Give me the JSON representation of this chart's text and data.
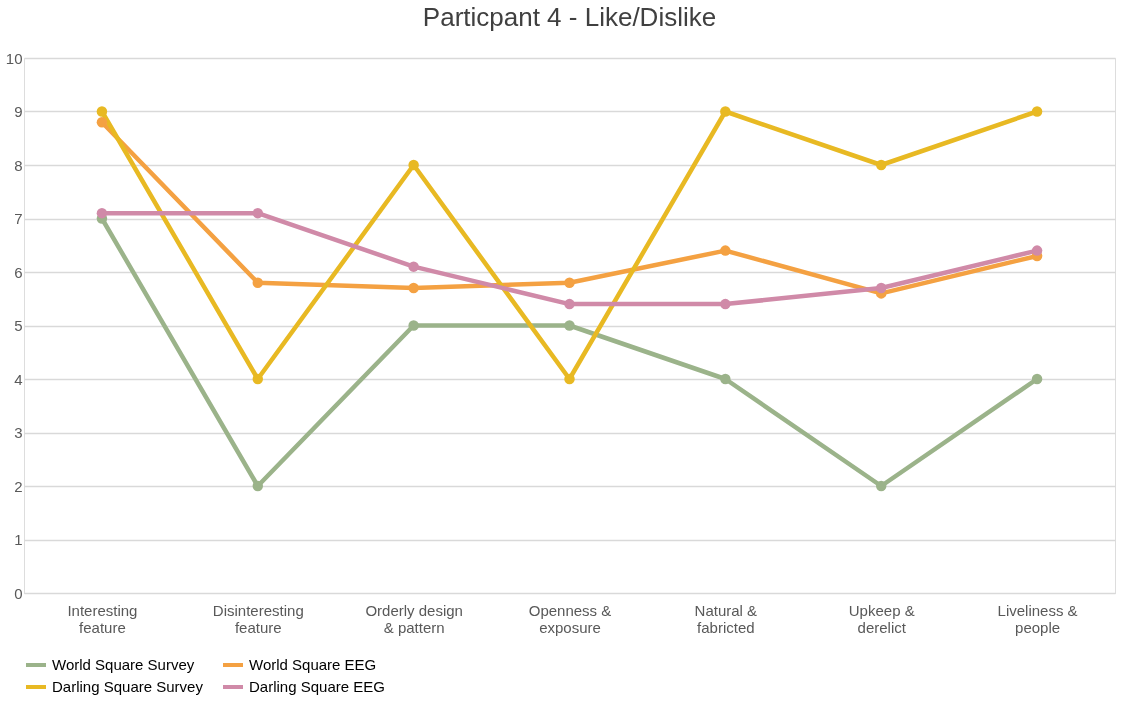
{
  "chart_data": {
    "type": "line",
    "title": "Particpant 4 - Like/Dislike",
    "categories": [
      "Interesting feature",
      "Disinteresting feature",
      "Orderly design & pattern",
      "Openness & exposure",
      "Natural & fabricted",
      "Upkeep & derelict",
      "Liveliness & people"
    ],
    "series": [
      {
        "name": "World Square Survey",
        "color": "#9bb38a",
        "values": [
          7,
          2,
          5,
          5,
          4,
          2,
          4
        ]
      },
      {
        "name": "World Square EEG",
        "color": "#f4a142",
        "values": [
          8.8,
          5.8,
          5.7,
          5.8,
          6.4,
          5.6,
          6.3
        ]
      },
      {
        "name": "Darling Square Survey",
        "color": "#e8b923",
        "values": [
          9,
          4,
          8,
          4,
          9,
          8,
          9
        ]
      },
      {
        "name": "Darling Square EEG",
        "color": "#d08aa8",
        "values": [
          7.1,
          7.1,
          6.1,
          5.4,
          5.4,
          5.7,
          6.4
        ]
      }
    ],
    "ylim": [
      0,
      10
    ],
    "yticks": [
      0,
      1,
      2,
      3,
      4,
      5,
      6,
      7,
      8,
      9,
      10
    ],
    "grid": "y",
    "legend": "bottom",
    "marker": "circle",
    "line_style": "solid"
  }
}
